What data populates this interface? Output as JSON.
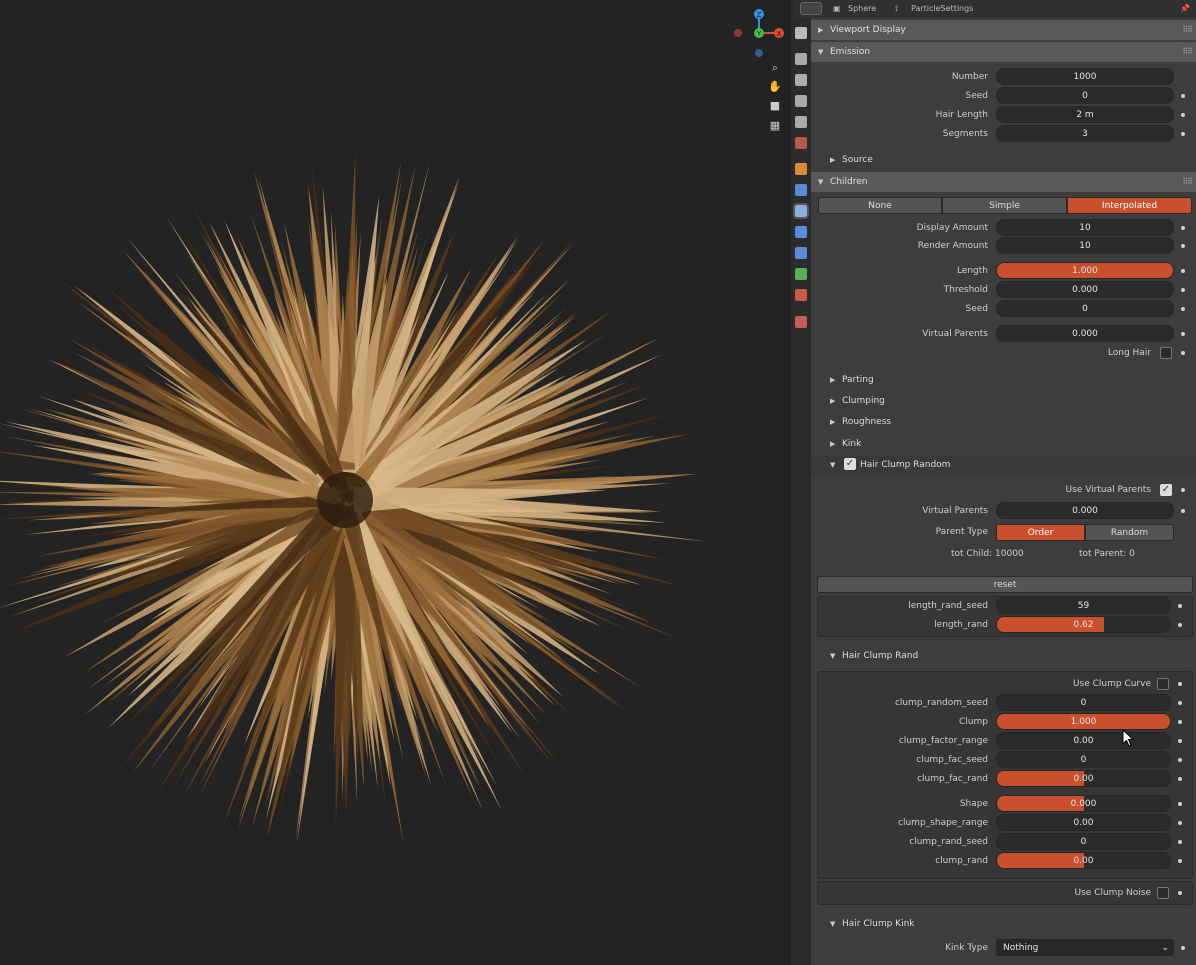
{
  "header": {
    "object": "Sphere",
    "settings": "ParticleSettings"
  },
  "gizmo": {
    "z": "Z",
    "y": "Y",
    "x": "X"
  },
  "colors": {
    "accent": "#c94f2d",
    "panel": "#3d3d3d",
    "viewport": "#232323",
    "hair": "#a07845"
  },
  "panels": {
    "viewport_display": "Viewport Display",
    "emission": "Emission",
    "children": "Children"
  },
  "emission": {
    "number_label": "Number",
    "number": "1000",
    "seed_label": "Seed",
    "seed": "0",
    "hair_length_label": "Hair Length",
    "hair_length": "2 m",
    "segments_label": "Segments",
    "segments": "3",
    "source": "Source"
  },
  "children": {
    "modes": [
      "None",
      "Simple",
      "Interpolated"
    ],
    "selected_mode": "Interpolated",
    "display_amount_label": "Display Amount",
    "display_amount": "10",
    "render_amount_label": "Render Amount",
    "render_amount": "10",
    "length_label": "Length",
    "length": "1.000",
    "length_fill": 1.0,
    "threshold_label": "Threshold",
    "threshold": "0.000",
    "seed_label": "Seed",
    "seed": "0",
    "virtual_parents_label": "Virtual Parents",
    "virtual_parents": "0.000",
    "long_hair_label": "Long Hair",
    "long_hair": false,
    "subpanels": [
      "Parting",
      "Clumping",
      "Roughness",
      "Kink"
    ]
  },
  "hair_clump_random": {
    "title": "Hair Clump Random",
    "enabled": true,
    "use_virtual_parents_label": "Use Virtual Parents",
    "use_virtual_parents": true,
    "virtual_parents_label": "Virtual Parents",
    "virtual_parents": "0.000",
    "parent_type_label": "Parent Type",
    "parent_types": [
      "Order",
      "Random"
    ],
    "parent_type": "Order",
    "tot_child": "tot Child: 10000",
    "tot_parent": "tot Parent: 0",
    "reset": "reset",
    "length_rand_seed_label": "length_rand_seed",
    "length_rand_seed": "59",
    "length_rand_label": "length_rand",
    "length_rand": "0.62",
    "length_rand_fill": 0.62
  },
  "hair_clump_rand": {
    "title": "Hair Clump Rand",
    "use_clump_curve_label": "Use Clump Curve",
    "use_clump_curve": false,
    "rows": [
      {
        "label": "clump_random_seed",
        "value": "0"
      },
      {
        "label": "Clump",
        "value": "1.000",
        "fill": 1.0
      },
      {
        "label": "clump_factor_range",
        "value": "0.00"
      },
      {
        "label": "clump_fac_seed",
        "value": "0"
      },
      {
        "label": "clump_fac_rand",
        "value": "0.00",
        "fill": 0.5
      },
      {
        "label": "Shape",
        "value": "0.000",
        "fill": 0.5
      },
      {
        "label": "clump_shape_range",
        "value": "0.00"
      },
      {
        "label": "clump_rand_seed",
        "value": "0"
      },
      {
        "label": "clump_rand",
        "value": "0.00",
        "fill": 0.5
      }
    ],
    "use_clump_noise_label": "Use Clump Noise",
    "use_clump_noise": false
  },
  "hair_clump_kink": {
    "title": "Hair Clump Kink",
    "kink_type_label": "Kink Type",
    "kink_type": "Nothing"
  }
}
